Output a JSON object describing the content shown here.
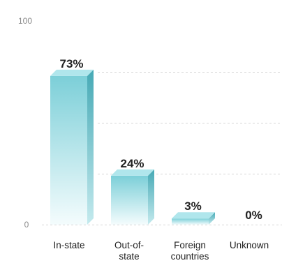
{
  "chart_data": {
    "type": "bar",
    "categories": [
      "In-state",
      "Out-of-state",
      "Foreign countries",
      "Unknown"
    ],
    "category_lines": [
      [
        "In-state"
      ],
      [
        "Out-of-",
        "state"
      ],
      [
        "Foreign",
        "countries"
      ],
      [
        "Unknown"
      ]
    ],
    "values": [
      73,
      24,
      3,
      0
    ],
    "value_labels": [
      "73%",
      "24%",
      "3%",
      "0%"
    ],
    "ylim": [
      0,
      100
    ],
    "yticks": [
      0,
      100
    ],
    "ytick_labels": [
      "0",
      "100"
    ],
    "gridlines": [
      25,
      50,
      75
    ],
    "grid": true,
    "title": "",
    "xlabel": "",
    "ylabel": "",
    "colors": {
      "bar_front_top": "#7ccfd8",
      "bar_front_bottom": "#f4fcfd",
      "bar_side": "#46a9b5",
      "bar_top": "#b0e6ec",
      "grid": "#d6d6d6",
      "tick_label": "#8a8a8a",
      "label": "#222222"
    }
  }
}
